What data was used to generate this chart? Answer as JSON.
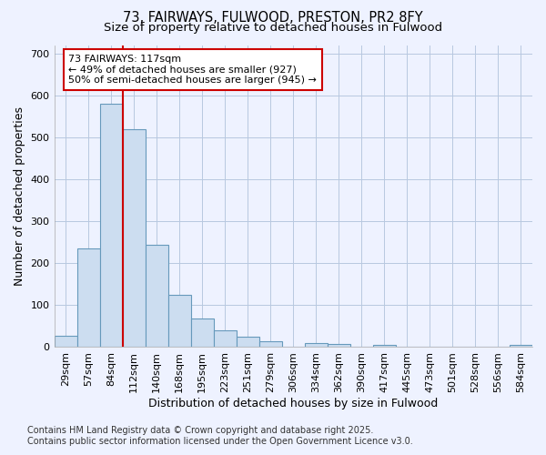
{
  "title_line1": "73, FAIRWAYS, FULWOOD, PRESTON, PR2 8FY",
  "title_line2": "Size of property relative to detached houses in Fulwood",
  "xlabel": "Distribution of detached houses by size in Fulwood",
  "ylabel": "Number of detached properties",
  "categories": [
    "29sqm",
    "57sqm",
    "84sqm",
    "112sqm",
    "140sqm",
    "168sqm",
    "195sqm",
    "223sqm",
    "251sqm",
    "279sqm",
    "306sqm",
    "334sqm",
    "362sqm",
    "390sqm",
    "417sqm",
    "445sqm",
    "473sqm",
    "501sqm",
    "528sqm",
    "556sqm",
    "584sqm"
  ],
  "values": [
    28,
    235,
    580,
    520,
    245,
    125,
    68,
    40,
    25,
    13,
    0,
    10,
    8,
    0,
    5,
    0,
    0,
    0,
    0,
    0,
    5
  ],
  "bar_color": "#ccddf0",
  "bar_edge_color": "#6699bb",
  "vline_color": "#cc0000",
  "annotation_text": "73 FAIRWAYS: 117sqm\n← 49% of detached houses are smaller (927)\n50% of semi-detached houses are larger (945) →",
  "annotation_box_color": "white",
  "annotation_box_edge_color": "#cc0000",
  "ylim": [
    0,
    720
  ],
  "yticks": [
    0,
    100,
    200,
    300,
    400,
    500,
    600,
    700
  ],
  "footer_line1": "Contains HM Land Registry data © Crown copyright and database right 2025.",
  "footer_line2": "Contains public sector information licensed under the Open Government Licence v3.0.",
  "bg_color": "#eef2ff",
  "grid_color": "#b8c8e0",
  "title_fontsize": 10.5,
  "subtitle_fontsize": 9.5,
  "axis_label_fontsize": 9,
  "tick_fontsize": 8,
  "annotation_fontsize": 8,
  "footer_fontsize": 7
}
